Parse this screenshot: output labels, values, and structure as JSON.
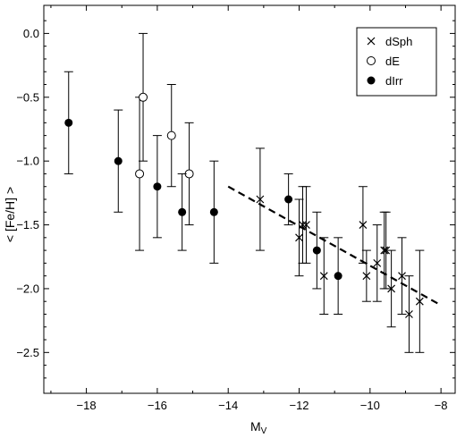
{
  "chart_data": {
    "type": "scatter",
    "title": "",
    "xlabel": "M",
    "xlabel_subscript": "V",
    "ylabel": "< [Fe/H] >",
    "xlim": [
      -19.2,
      -7.6
    ],
    "ylim": [
      -2.82,
      0.22
    ],
    "xticks": [
      -18,
      -16,
      -14,
      -12,
      -10,
      -8
    ],
    "yticks": [
      0.0,
      -0.5,
      -1.0,
      -1.5,
      -2.0,
      -2.5
    ],
    "xtick_labels": [
      "−18",
      "−16",
      "−14",
      "−12",
      "−10",
      "−8"
    ],
    "ytick_labels": [
      "0.0",
      "−0.5",
      "−1.0",
      "−1.5",
      "−2.0",
      "−2.5"
    ],
    "grid": false,
    "legend_position": "top-right",
    "series": [
      {
        "name": "dSph",
        "marker": "x",
        "points": [
          {
            "x": -13.1,
            "y": -1.3,
            "err": 0.4
          },
          {
            "x": -12.0,
            "y": -1.6,
            "err": 0.3
          },
          {
            "x": -11.9,
            "y": -1.5,
            "err": 0.3
          },
          {
            "x": -11.8,
            "y": -1.5,
            "err": 0.3
          },
          {
            "x": -11.3,
            "y": -1.9,
            "err": 0.3
          },
          {
            "x": -10.2,
            "y": -1.5,
            "err": 0.3
          },
          {
            "x": -10.1,
            "y": -1.9,
            "err": 0.2
          },
          {
            "x": -9.8,
            "y": -1.8,
            "err": 0.3
          },
          {
            "x": -9.6,
            "y": -1.7,
            "err": 0.3
          },
          {
            "x": -9.55,
            "y": -1.7,
            "err": 0.3
          },
          {
            "x": -9.4,
            "y": -2.0,
            "err": 0.3
          },
          {
            "x": -9.1,
            "y": -1.9,
            "err": 0.3
          },
          {
            "x": -8.9,
            "y": -2.2,
            "err": 0.3
          },
          {
            "x": -8.6,
            "y": -2.1,
            "err": 0.4
          }
        ]
      },
      {
        "name": "dE",
        "marker": "open-circle",
        "points": [
          {
            "x": -16.5,
            "y": -1.1,
            "err": 0.6
          },
          {
            "x": -16.4,
            "y": -0.5,
            "err": 0.5
          },
          {
            "x": -15.6,
            "y": -0.8,
            "err": 0.4
          },
          {
            "x": -15.1,
            "y": -1.1,
            "err": 0.4
          }
        ]
      },
      {
        "name": "dIrr",
        "marker": "filled-circle",
        "points": [
          {
            "x": -18.5,
            "y": -0.7,
            "err": 0.4
          },
          {
            "x": -17.1,
            "y": -1.0,
            "err": 0.4
          },
          {
            "x": -16.0,
            "y": -1.2,
            "err": 0.4
          },
          {
            "x": -15.3,
            "y": -1.4,
            "err": 0.3
          },
          {
            "x": -14.4,
            "y": -1.4,
            "err": 0.4
          },
          {
            "x": -12.3,
            "y": -1.3,
            "err": 0.2
          },
          {
            "x": -11.5,
            "y": -1.7,
            "err": 0.3
          },
          {
            "x": -10.9,
            "y": -1.9,
            "err": 0.3
          }
        ]
      }
    ],
    "fit_line": {
      "style": "dashed",
      "x": [
        -14.0,
        -8.0
      ],
      "y": [
        -1.2,
        -2.13
      ]
    }
  }
}
